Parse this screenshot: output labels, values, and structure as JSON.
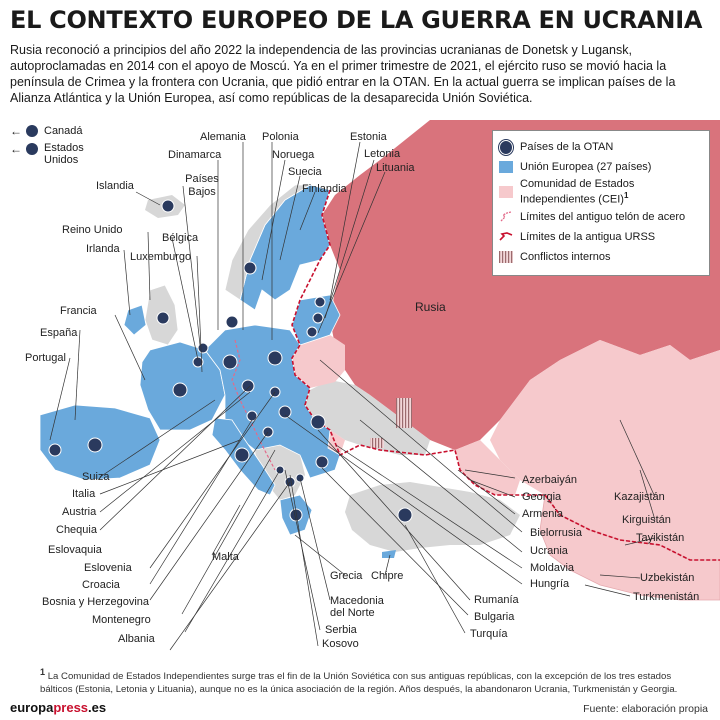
{
  "title": "EL CONTEXTO EUROPEO DE LA GUERRA EN UCRANIA",
  "intro": "Rusia reconoció a principios del año 2022 la independencia de las provincias ucranianas de Donetsk y Lugansk, autoproclamadas en 2014 con el apoyo de Moscú. Ya en el primer trimestre de 2021, el ejército ruso se movió hacia la península de Crimea y la frontera con Ucrania, que pidió entrar en la OTAN. En la actual guerra se implican países de la Alianza Atlántica y la Unión Europea, así como repúblicas de la desaparecida Unión Soviética.",
  "colors": {
    "eu": "#6aa9dc",
    "cis": "#f6c9cc",
    "russia": "#d9737c",
    "non_eu": "#d7d7d7",
    "nato": "#2a3a5e",
    "ussr_border": "#c8102e",
    "sea": "#ffffff"
  },
  "offmap": {
    "canada": "Canadá",
    "usa": "Estados Unidos"
  },
  "legend": {
    "nato": "Países de la OTAN",
    "eu": "Unión Europea (27 países)",
    "cis": "Comunidad de Estados Independientes (CEI)",
    "cis_sup": "1",
    "iron_curtain": "Límites del antiguo telón de acero",
    "ussr": "Límites de la antigua URSS",
    "conflicts": "Conflictos internos"
  },
  "countries": {
    "alemania": "Alemania",
    "polonia": "Polonia",
    "dinamarca": "Dinamarca",
    "noruega": "Noruega",
    "estonia": "Estonia",
    "letonia": "Letonia",
    "lituania": "Lituania",
    "suecia": "Suecia",
    "finlandia": "Finlandia",
    "islandia": "Islandia",
    "paises_bajos": "Países Bajos",
    "reino_unido": "Reino Unido",
    "irlanda": "Irlanda",
    "belgica": "Bélgica",
    "luxemburgo": "Luxemburgo",
    "francia": "Francia",
    "espana": "España",
    "portugal": "Portugal",
    "rusia": "Rusia",
    "azerbaiyan": "Azerbaiyán",
    "georgia": "Georgia",
    "armenia": "Armenia",
    "bielorrusia": "Bielorrusia",
    "ucrania": "Ucrania",
    "moldavia": "Moldavia",
    "hungria": "Hungría",
    "kazajistan": "Kazajistán",
    "kirguistan": "Kirguistán",
    "tayikistan": "Tayikistán",
    "uzbekistan": "Uzbekistán",
    "turkmenistan": "Turkmenistán",
    "suiza": "Suiza",
    "italia": "Italia",
    "austria": "Austria",
    "chequia": "Chequia",
    "eslovaquia": "Eslovaquia",
    "malta": "Malta",
    "eslovenia": "Eslovenia",
    "croacia": "Croacia",
    "bosnia": "Bosnia y Herzegovina",
    "montenegro": "Montenegro",
    "albania": "Albania",
    "grecia": "Grecia",
    "chipre": "Chipre",
    "macedonia": "Macedonia del Norte",
    "serbia": "Serbia",
    "kosovo": "Kosovo",
    "rumania": "Rumanía",
    "bulgaria": "Bulgaria",
    "turquia": "Turquía"
  },
  "footnote_mark": "1",
  "footnote": "La Comunidad de Estados Independientes surge tras el fin de la Unión Soviética con sus antiguas repúblicas, con la excepción de los tres estados bálticos (Estonia, Letonia y Lituania), aunque no es la única asociación de la región. Años después, la abandonaron Ucrania, Turkmenistán y Georgia.",
  "brand_main": "europa",
  "brand_accent": "press",
  "brand_suffix": ".es",
  "source": "Fuente: elaboración propia"
}
